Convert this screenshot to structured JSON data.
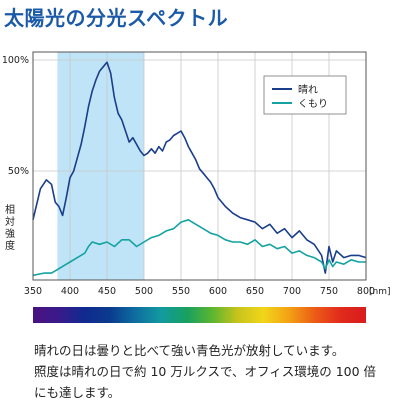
{
  "title": "太陽光の分光スペクトル",
  "description": [
    "晴れの日は曇りと比べて強い青色光が放射しています。",
    "照度は晴れの日で約 10 万ルクスで、オフィス環境の 100 倍",
    "にも達します。"
  ],
  "colors": {
    "title": "#1b5aa8",
    "sunny": "#1a3e8c",
    "cloudy": "#14a3a0",
    "highlight": "#bfe3f7",
    "grid": "#c8c8c8"
  },
  "chart_data": {
    "type": "line",
    "title": "太陽光の分光スペクトル",
    "xlabel": "[nm]",
    "ylabel": "相対強度",
    "xlim": [
      350,
      800
    ],
    "ylim": [
      0,
      100
    ],
    "x_ticks": [
      "350",
      "400",
      "450",
      "500",
      "550",
      "600",
      "650",
      "700",
      "750",
      "800"
    ],
    "y_ticks": [
      "50%",
      "100%"
    ],
    "x_tick_values": [
      350,
      400,
      450,
      500,
      550,
      600,
      650,
      700,
      750,
      800
    ],
    "y_tick_values": [
      50,
      100
    ],
    "highlight_band": [
      383,
      500
    ],
    "grid": true,
    "legend_position": "top-right",
    "series": [
      {
        "name": "晴れ",
        "color": "#1a3e8c",
        "x": [
          350,
          360,
          368,
          375,
          380,
          385,
          390,
          395,
          400,
          405,
          410,
          415,
          420,
          425,
          430,
          435,
          440,
          445,
          450,
          455,
          460,
          465,
          470,
          475,
          480,
          485,
          490,
          495,
          500,
          505,
          510,
          515,
          520,
          525,
          530,
          535,
          540,
          545,
          550,
          555,
          560,
          565,
          570,
          575,
          580,
          585,
          590,
          595,
          600,
          610,
          620,
          630,
          640,
          650,
          660,
          670,
          680,
          690,
          700,
          710,
          720,
          730,
          740,
          745,
          750,
          755,
          760,
          770,
          780,
          790,
          800
        ],
        "y": [
          28,
          42,
          46,
          44,
          36,
          34,
          30,
          38,
          47,
          50,
          56,
          62,
          70,
          79,
          86,
          91,
          95,
          97,
          99,
          94,
          83,
          76,
          73,
          68,
          63,
          65,
          62,
          59,
          57,
          58,
          60,
          58,
          61,
          59,
          63,
          64,
          66,
          67,
          68,
          65,
          61,
          58,
          55,
          51,
          49,
          47,
          45,
          42,
          38,
          34,
          31,
          29,
          28,
          27,
          24,
          26,
          22,
          24,
          20,
          23,
          19,
          17,
          12,
          4,
          16,
          9,
          14,
          11,
          12,
          12,
          11
        ]
      },
      {
        "name": "くもり",
        "color": "#14a3a0",
        "x": [
          350,
          365,
          375,
          385,
          395,
          400,
          410,
          420,
          425,
          430,
          440,
          450,
          460,
          470,
          480,
          490,
          500,
          510,
          520,
          530,
          540,
          550,
          560,
          570,
          580,
          590,
          600,
          610,
          620,
          630,
          640,
          650,
          660,
          670,
          680,
          690,
          700,
          710,
          720,
          730,
          740,
          745,
          750,
          755,
          760,
          770,
          780,
          790,
          800
        ],
        "y": [
          3,
          4,
          4,
          6,
          8,
          9,
          11,
          13,
          16,
          18,
          17,
          18,
          16,
          19,
          19,
          16,
          18,
          20,
          21,
          23,
          24,
          27,
          28,
          26,
          24,
          22,
          21,
          19,
          18,
          18,
          17,
          19,
          16,
          17,
          15,
          16,
          13,
          14,
          12,
          11,
          9,
          6,
          10,
          7,
          9,
          8,
          10,
          9,
          9
        ]
      }
    ],
    "spectrum_bar": {
      "x_range": [
        350,
        800
      ],
      "colors": [
        "#4b1180",
        "#3a1a8c",
        "#102a8f",
        "#0a3b8e",
        "#0f6ea0",
        "#129aa0",
        "#18a060",
        "#5cb531",
        "#c8c41c",
        "#f0d61a",
        "#f3a114",
        "#ec5c16",
        "#e12a1c",
        "#d91c1c"
      ]
    }
  }
}
